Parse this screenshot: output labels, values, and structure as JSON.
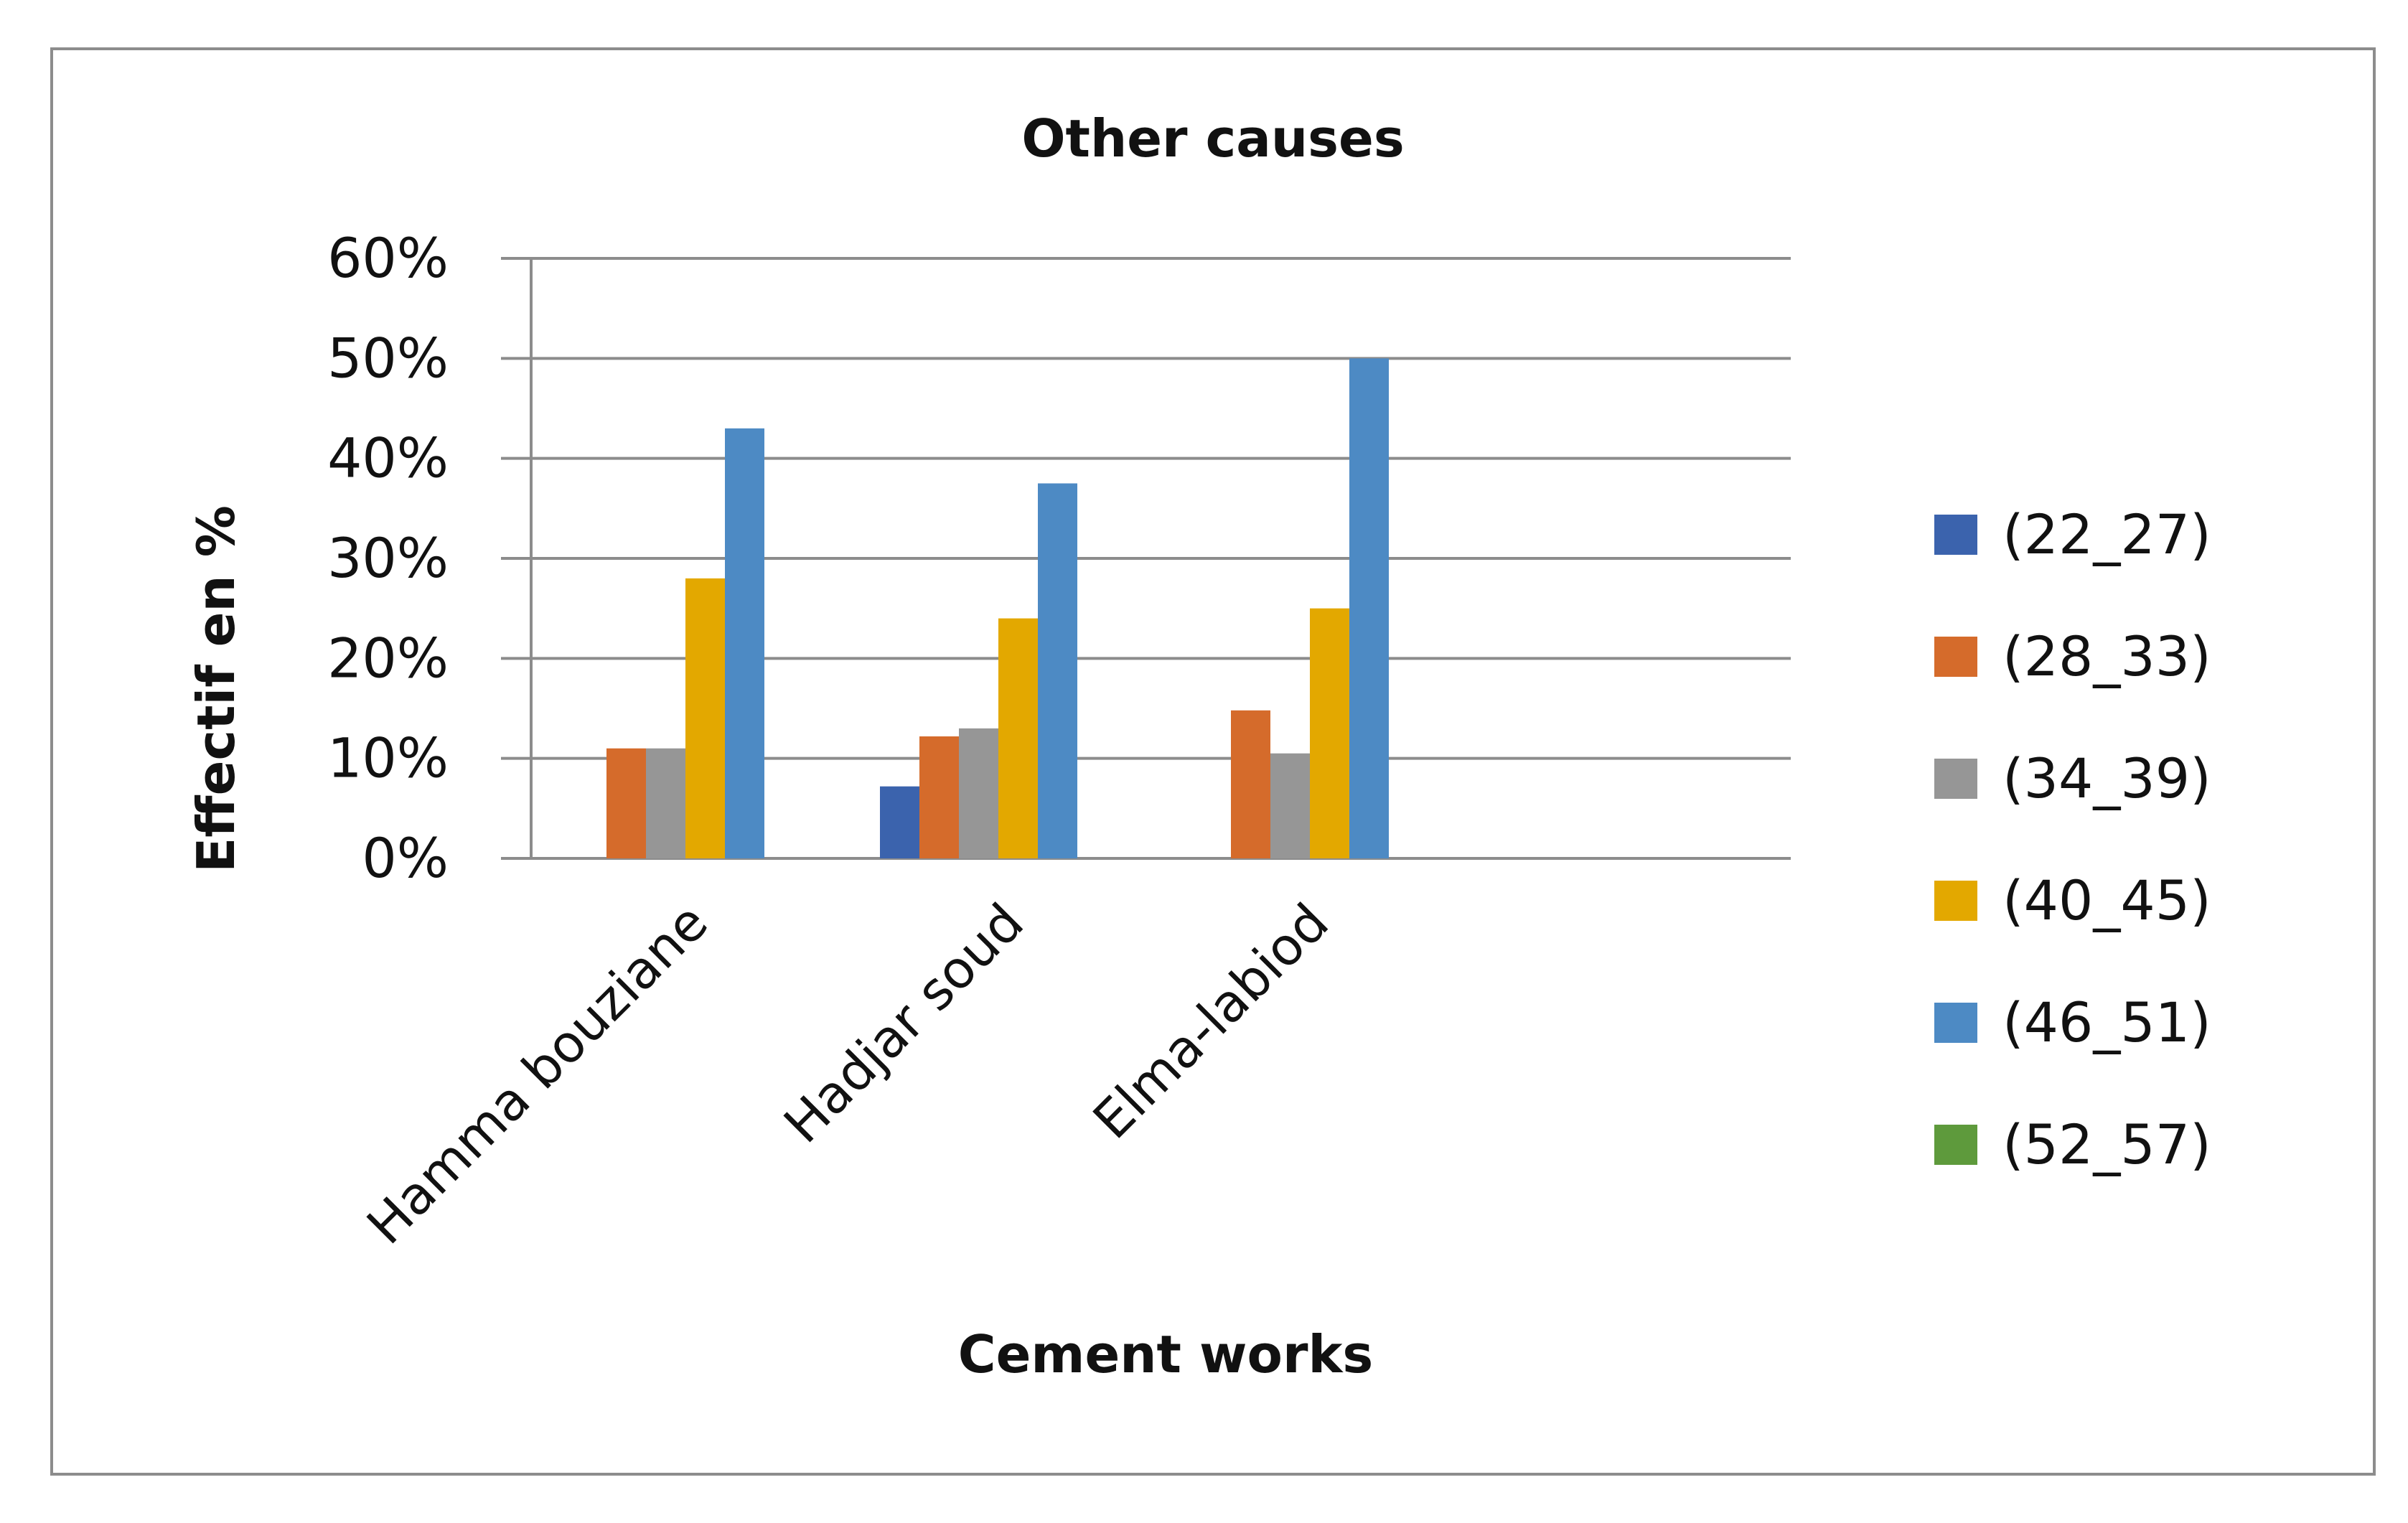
{
  "chart_data": {
    "type": "bar",
    "title": "Other causes",
    "xlabel": "Cement works",
    "ylabel": "Effectif en %",
    "categories": [
      "Hamma bouziane",
      "Hadjar soud",
      "Elma-labiod"
    ],
    "ylim": [
      0,
      60
    ],
    "yticks": [
      "0%",
      "10%",
      "20%",
      "30%",
      "40%",
      "50%",
      "60%"
    ],
    "grid": true,
    "legend_position": "right",
    "series": [
      {
        "name": "(22_27)",
        "color": "#3b63ad",
        "values": [
          0,
          7.2,
          0
        ]
      },
      {
        "name": "(28_33)",
        "color": "#d56b2b",
        "values": [
          11,
          12.2,
          14.8
        ]
      },
      {
        "name": "(34_39)",
        "color": "#969696",
        "values": [
          11,
          13,
          10.5
        ]
      },
      {
        "name": "(40_45)",
        "color": "#e3a800",
        "values": [
          28,
          24,
          25
        ]
      },
      {
        "name": "(46_51)",
        "color": "#4d8ac4",
        "values": [
          43,
          37.5,
          50
        ]
      },
      {
        "name": "(52_57)",
        "color": "#5e9a3c",
        "values": [
          0,
          0,
          0
        ]
      }
    ]
  }
}
